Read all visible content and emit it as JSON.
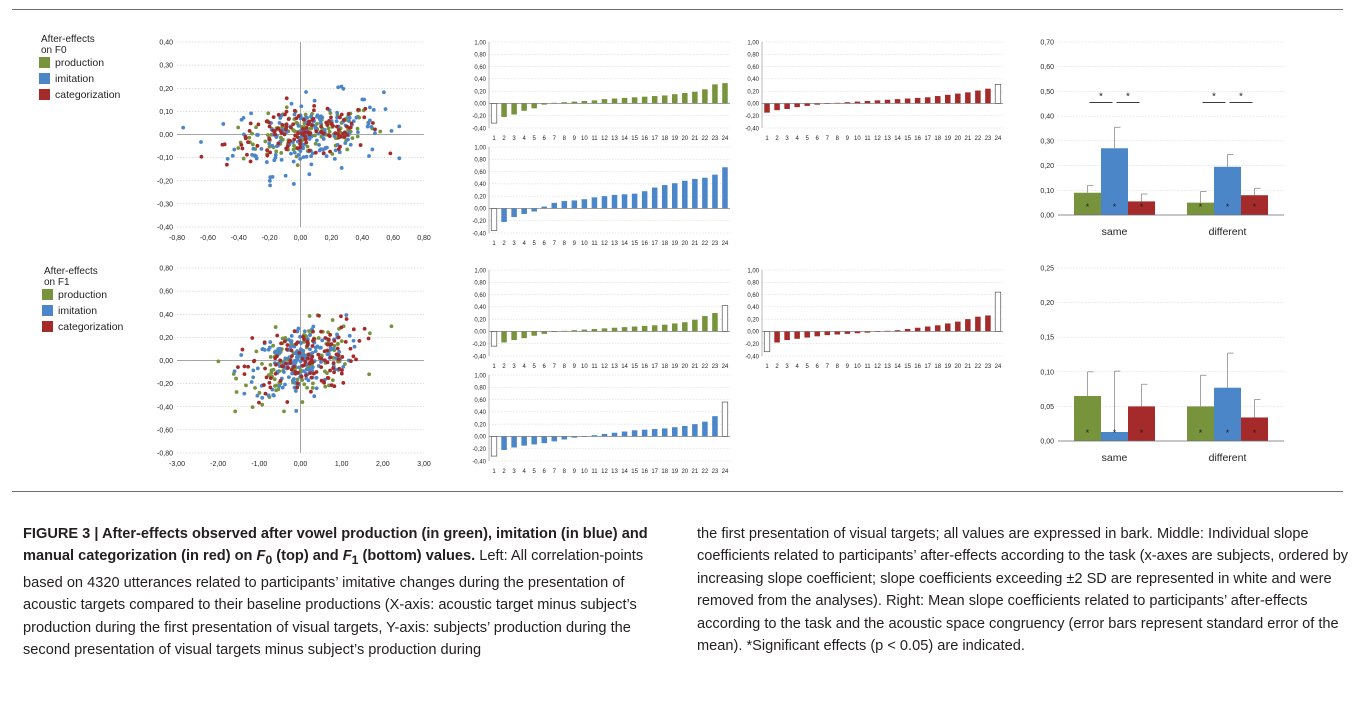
{
  "figure": {
    "f0_title": [
      "After-effects",
      "on F0"
    ],
    "f1_title": [
      "After-effects",
      "on F1"
    ],
    "legend": [
      {
        "label": "production",
        "color": "#77933c"
      },
      {
        "label": "imitation",
        "color": "#4a86c8"
      },
      {
        "label": "categorization",
        "color": "#a52a2a"
      }
    ],
    "caption": {
      "heading_prefix": "FIGURE 3 | After-effects observed after vowel production (in green), imitation (in blue) and manual categorization (in red) on ",
      "heading_f0": "F",
      "heading_f0_sub": "0",
      "heading_mid": " (top) and ",
      "heading_f1": "F",
      "heading_f1_sub": "1",
      "heading_suffix": " (bottom) values.",
      "left_text": " Left: All correlation-points based on 4320 utterances related to participants’ imitative changes during the presentation of acoustic targets compared to their baseline productions (X-axis: acoustic target minus subject’s production during the first presentation of visual targets, Y-axis: subjects’ production during the second presentation of visual targets minus subject’s production during",
      "right_text": "the first presentation of visual targets; all values are expressed in bark. Middle: Individual slope coefficients related to participants’ after-effects according to the task (x-axes are subjects, ordered by increasing slope coefficient; slope coefficients exceeding ±2 SD are represented in white and were removed from the analyses). Right: Mean slope coefficients related to participants’ after-effects according to the task and the acoustic space congruency (error bars represent standard error of the mean). *Significant effects (p < 0.05) are indicated."
    }
  },
  "chart_data": [
    {
      "id": "scatter_f0",
      "type": "scatter",
      "xlim": [
        -0.8,
        0.8
      ],
      "ylim": [
        -0.4,
        0.4
      ],
      "xticks": [
        "-0,80",
        "-0,60",
        "-0,40",
        "-0,20",
        "0,00",
        "0,20",
        "0,40",
        "0,60",
        "0,80"
      ],
      "yticks": [
        "-0,40",
        "-0,30",
        "-0,20",
        "-0,10",
        "0,00",
        "0,10",
        "0,20",
        "0,30",
        "0,40"
      ],
      "grid": true,
      "series": [
        {
          "name": "production",
          "n": 120,
          "x_mean": 0.05,
          "x_sd": 0.22,
          "y_mean": 0.0,
          "y_sd": 0.05
        },
        {
          "name": "imitation",
          "n": 170,
          "x_mean": 0.05,
          "x_sd": 0.24,
          "y_mean": 0.0,
          "y_sd": 0.08
        },
        {
          "name": "categorization",
          "n": 130,
          "x_mean": 0.02,
          "x_sd": 0.25,
          "y_mean": 0.0,
          "y_sd": 0.05
        }
      ]
    },
    {
      "id": "scatter_f1",
      "type": "scatter",
      "xlim": [
        -3.0,
        3.0
      ],
      "ylim": [
        -0.8,
        0.8
      ],
      "xticks": [
        "-3,00",
        "-2,00",
        "-1,00",
        "0,00",
        "1,00",
        "2,00",
        "3,00"
      ],
      "yticks": [
        "-0,80",
        "-0,60",
        "-0,40",
        "-0,20",
        "0,00",
        "0,20",
        "0,40",
        "0,60",
        "0,80"
      ],
      "grid": true,
      "series": [
        {
          "name": "production",
          "n": 130,
          "x_mean": 0.0,
          "x_sd": 0.7,
          "y_mean": 0.0,
          "y_sd": 0.15
        },
        {
          "name": "imitation",
          "n": 170,
          "x_mean": 0.0,
          "x_sd": 0.55,
          "y_mean": 0.0,
          "y_sd": 0.15
        },
        {
          "name": "categorization",
          "n": 130,
          "x_mean": 0.0,
          "x_sd": 0.7,
          "y_mean": 0.0,
          "y_sd": 0.15
        }
      ]
    },
    {
      "id": "slopes_f0_production",
      "type": "bar",
      "series_name": "production",
      "categories": [
        "1",
        "2",
        "3",
        "4",
        "5",
        "6",
        "7",
        "8",
        "9",
        "10",
        "11",
        "12",
        "13",
        "14",
        "15",
        "16",
        "17",
        "18",
        "19",
        "20",
        "21",
        "22",
        "23",
        "24"
      ],
      "values": [
        -0.32,
        -0.22,
        -0.18,
        -0.12,
        -0.08,
        -0.02,
        0.01,
        0.02,
        0.03,
        0.04,
        0.05,
        0.07,
        0.08,
        0.09,
        0.1,
        0.11,
        0.12,
        0.13,
        0.15,
        0.17,
        0.19,
        0.23,
        0.31,
        0.33
      ],
      "excluded": [
        1
      ],
      "ylim": [
        -0.4,
        1.0
      ],
      "yticks": [
        "-0,40",
        "-0,20",
        "0,00",
        "0,20",
        "0,40",
        "0,60",
        "0,80",
        "1,00"
      ]
    },
    {
      "id": "slopes_f0_categorization",
      "type": "bar",
      "series_name": "categorization",
      "categories": [
        "1",
        "2",
        "3",
        "4",
        "5",
        "6",
        "7",
        "8",
        "9",
        "10",
        "11",
        "12",
        "13",
        "14",
        "15",
        "16",
        "17",
        "18",
        "19",
        "20",
        "21",
        "22",
        "23",
        "24"
      ],
      "values": [
        -0.15,
        -0.11,
        -0.09,
        -0.06,
        -0.04,
        -0.02,
        0.0,
        0.01,
        0.02,
        0.03,
        0.04,
        0.05,
        0.06,
        0.07,
        0.08,
        0.09,
        0.1,
        0.12,
        0.14,
        0.16,
        0.18,
        0.21,
        0.24,
        0.31
      ],
      "excluded": [
        24
      ],
      "ylim": [
        -0.4,
        1.0
      ],
      "yticks": [
        "-0,40",
        "-0,20",
        "0,00",
        "0,20",
        "0,40",
        "0,60",
        "0,80",
        "1,00"
      ]
    },
    {
      "id": "slopes_f0_imitation",
      "type": "bar",
      "series_name": "imitation",
      "categories": [
        "1",
        "2",
        "3",
        "4",
        "5",
        "6",
        "7",
        "8",
        "9",
        "10",
        "11",
        "12",
        "13",
        "14",
        "15",
        "16",
        "17",
        "18",
        "19",
        "20",
        "21",
        "22",
        "23",
        "24"
      ],
      "values": [
        -0.36,
        -0.22,
        -0.14,
        -0.09,
        -0.05,
        0.03,
        0.09,
        0.12,
        0.13,
        0.15,
        0.18,
        0.2,
        0.22,
        0.23,
        0.24,
        0.28,
        0.34,
        0.38,
        0.41,
        0.45,
        0.48,
        0.5,
        0.55,
        0.67
      ],
      "excluded": [
        1
      ],
      "ylim": [
        -0.4,
        1.0
      ],
      "yticks": [
        "-0,40",
        "-0,20",
        "0,00",
        "0,20",
        "0,40",
        "0,60",
        "0,80",
        "1,00"
      ]
    },
    {
      "id": "slopes_f1_production",
      "type": "bar",
      "series_name": "production",
      "categories": [
        "1",
        "2",
        "3",
        "4",
        "5",
        "6",
        "7",
        "8",
        "9",
        "10",
        "11",
        "12",
        "13",
        "14",
        "15",
        "16",
        "17",
        "18",
        "19",
        "20",
        "21",
        "22",
        "23",
        "24"
      ],
      "values": [
        -0.24,
        -0.18,
        -0.14,
        -0.11,
        -0.07,
        -0.04,
        -0.01,
        0.01,
        0.02,
        0.03,
        0.04,
        0.05,
        0.06,
        0.07,
        0.08,
        0.09,
        0.1,
        0.11,
        0.13,
        0.15,
        0.19,
        0.25,
        0.3,
        0.42
      ],
      "excluded": [
        1,
        24
      ],
      "ylim": [
        -0.4,
        1.0
      ],
      "yticks": [
        "-0,40",
        "-0,20",
        "0,00",
        "0,20",
        "0,40",
        "0,60",
        "0,80",
        "1,00"
      ]
    },
    {
      "id": "slopes_f1_categorization",
      "type": "bar",
      "series_name": "categorization",
      "categories": [
        "1",
        "2",
        "3",
        "4",
        "5",
        "6",
        "7",
        "8",
        "9",
        "10",
        "11",
        "12",
        "13",
        "14",
        "15",
        "16",
        "17",
        "18",
        "19",
        "20",
        "21",
        "22",
        "23",
        "24"
      ],
      "values": [
        -0.33,
        -0.18,
        -0.14,
        -0.12,
        -0.1,
        -0.08,
        -0.06,
        -0.05,
        -0.04,
        -0.03,
        -0.02,
        0.0,
        0.01,
        0.02,
        0.04,
        0.06,
        0.08,
        0.1,
        0.13,
        0.16,
        0.2,
        0.24,
        0.26,
        0.64
      ],
      "excluded": [
        1,
        24
      ],
      "ylim": [
        -0.4,
        1.0
      ],
      "yticks": [
        "-0,40",
        "-0,20",
        "0,00",
        "0,20",
        "0,40",
        "0,60",
        "0,80",
        "1,00"
      ]
    },
    {
      "id": "slopes_f1_imitation",
      "type": "bar",
      "series_name": "imitation",
      "categories": [
        "1",
        "2",
        "3",
        "4",
        "5",
        "6",
        "7",
        "8",
        "9",
        "10",
        "11",
        "12",
        "13",
        "14",
        "15",
        "16",
        "17",
        "18",
        "19",
        "20",
        "21",
        "22",
        "23",
        "24"
      ],
      "values": [
        -0.32,
        -0.22,
        -0.18,
        -0.15,
        -0.13,
        -0.11,
        -0.08,
        -0.05,
        -0.02,
        0.0,
        0.02,
        0.04,
        0.06,
        0.08,
        0.1,
        0.11,
        0.12,
        0.13,
        0.15,
        0.17,
        0.2,
        0.24,
        0.33,
        0.56
      ],
      "excluded": [
        1,
        24
      ],
      "ylim": [
        -0.4,
        1.0
      ],
      "yticks": [
        "-0,40",
        "-0,20",
        "0,00",
        "0,20",
        "0,40",
        "0,60",
        "0,80",
        "1,00"
      ]
    },
    {
      "id": "means_f0",
      "type": "bar",
      "categories": [
        "same",
        "different"
      ],
      "series": [
        {
          "name": "production",
          "values": [
            0.09,
            0.05
          ],
          "errors": [
            0.03,
            0.045
          ]
        },
        {
          "name": "imitation",
          "values": [
            0.27,
            0.195
          ],
          "errors": [
            0.085,
            0.05
          ]
        },
        {
          "name": "categorization",
          "values": [
            0.055,
            0.08
          ],
          "errors": [
            0.03,
            0.028
          ]
        }
      ],
      "sig_markers": [
        [
          "production",
          "imitation"
        ],
        [
          "imitation",
          "categorization"
        ]
      ],
      "ylim": [
        0,
        0.7
      ],
      "yticks": [
        "0,00",
        "0,10",
        "0,20",
        "0,30",
        "0,40",
        "0,50",
        "0,60",
        "0,70"
      ]
    },
    {
      "id": "means_f1",
      "type": "bar",
      "categories": [
        "same",
        "different"
      ],
      "series": [
        {
          "name": "production",
          "values": [
            0.065,
            0.05
          ],
          "errors": [
            0.035,
            0.045
          ]
        },
        {
          "name": "imitation",
          "values": [
            0.013,
            0.077
          ],
          "errors": [
            0.088,
            0.05
          ]
        },
        {
          "name": "categorization",
          "values": [
            0.05,
            0.034
          ],
          "errors": [
            0.032,
            0.026
          ]
        }
      ],
      "sig_markers": [],
      "ylim": [
        0,
        0.25
      ],
      "yticks": [
        "0,00",
        "0,05",
        "0,10",
        "0,15",
        "0,20",
        "0,25"
      ]
    }
  ]
}
